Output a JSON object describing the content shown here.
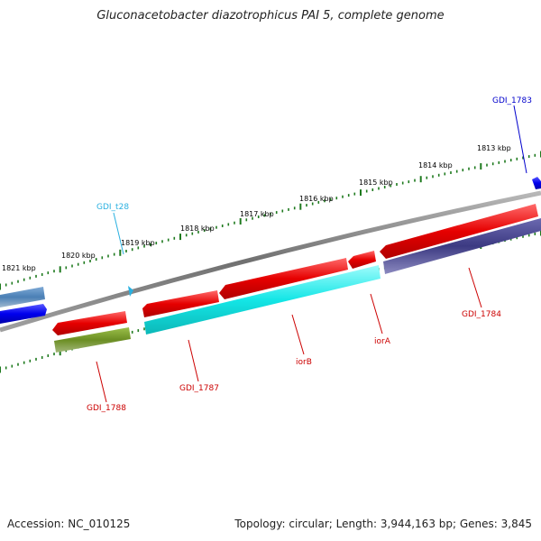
{
  "header": {
    "title": "Gluconacetobacter diazotrophicus PAI 5, complete genome"
  },
  "footer": {
    "accession": "Accession: NC_010125",
    "summary": "Topology: circular; Length: 3,944,163 bp; Genes: 3,845"
  },
  "scale_labels": [
    "1813 kbp",
    "1814 kbp",
    "1815 kbp",
    "1816 kbp",
    "1817 kbp",
    "1818 kbp",
    "1819 kbp",
    "1820 kbp",
    "1821 kbp"
  ],
  "gene_labels": {
    "gdi_1783": "GDI_1783",
    "gdi_t28": "GDI_t28",
    "gdi_1784": "GDI_1784",
    "iora": "iorA",
    "iorb": "iorB",
    "gdi_1787": "GDI_1787",
    "gdi_1788": "GDI_1788"
  },
  "colors": {
    "backbone": "#8a8a8a",
    "tick": "#1e7a1e",
    "gene_red": "#e60000",
    "gene_cyan": "#14e6e6",
    "gene_navy": "#3c3a82",
    "gene_olive": "#6b8e23",
    "gene_blue": "#0000ee",
    "gene_steelblue": "#4a7fb5",
    "label_red": "#cc0000",
    "label_cyan": "#2ab0e0",
    "label_blue": "#0000cc"
  }
}
